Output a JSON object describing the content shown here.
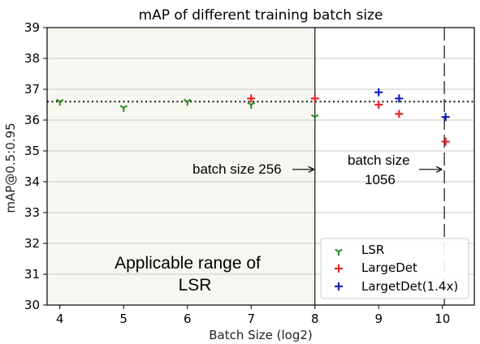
{
  "chart_data": {
    "type": "scatter",
    "title": "mAP of different training batch size",
    "xlabel": "Batch Size (log2)",
    "ylabel": "mAP@0.5:0.95",
    "xlim": [
      3.8,
      10.5
    ],
    "ylim": [
      30,
      39
    ],
    "xticks": [
      4,
      5,
      6,
      7,
      8,
      9,
      10
    ],
    "yticks": [
      30,
      31,
      32,
      33,
      34,
      35,
      36,
      37,
      38,
      39
    ],
    "grid": "horizontal",
    "legend_position": "lower-right",
    "series": [
      {
        "name": "LSR",
        "marker": "tri_down",
        "color": "#228b22",
        "points": [
          {
            "x": 4,
            "y": 36.6
          },
          {
            "x": 5,
            "y": 36.4
          },
          {
            "x": 6,
            "y": 36.6
          },
          {
            "x": 7,
            "y": 36.5
          },
          {
            "x": 8,
            "y": 36.1
          }
        ]
      },
      {
        "name": "LargeDet",
        "marker": "plus",
        "color": "#e8262a",
        "points": [
          {
            "x": 7,
            "y": 36.7
          },
          {
            "x": 8,
            "y": 36.7
          },
          {
            "x": 9,
            "y": 36.5
          },
          {
            "x": 9.32,
            "y": 36.2
          },
          {
            "x": 10.05,
            "y": 35.3
          }
        ]
      },
      {
        "name": "LargetDet(1.4x)",
        "marker": "plus",
        "color": "#1224b8",
        "points": [
          {
            "x": 9,
            "y": 36.9
          },
          {
            "x": 9.32,
            "y": 36.7
          },
          {
            "x": 10.05,
            "y": 36.1
          }
        ]
      }
    ],
    "reference_line": {
      "y": 36.6,
      "style": "dotted"
    },
    "shaded_region": {
      "x_from": 3.8,
      "x_to": 8,
      "color": "#f7f7f1",
      "label_line1": "Applicable range of",
      "label_line2": "LSR"
    },
    "vertical_lines": [
      {
        "x": 8,
        "style": "solid"
      },
      {
        "x": 10.03,
        "style": "dashed"
      }
    ],
    "annotations": [
      {
        "text": "batch size 256",
        "x": 7.45,
        "y": 34.4
      },
      {
        "text_line1": "batch size",
        "text_line2": "1056",
        "x": 9.05,
        "y": 34.4
      }
    ]
  }
}
